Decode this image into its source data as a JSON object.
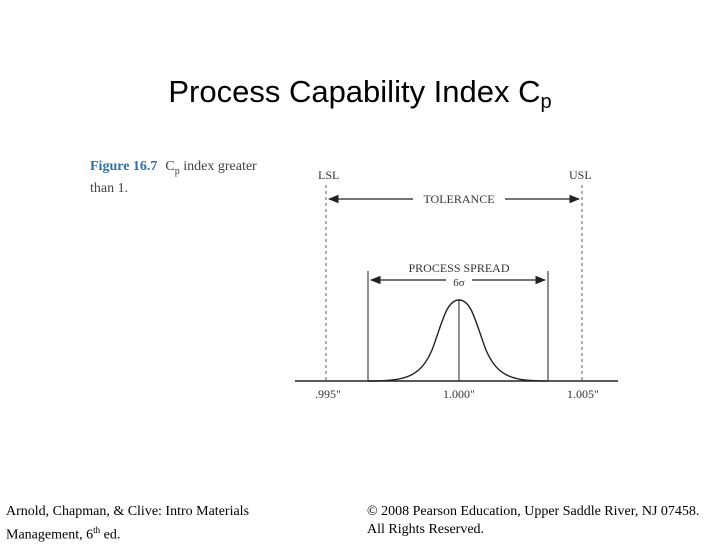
{
  "slide": {
    "title": "Process Capability Index C",
    "title_subscript": "p"
  },
  "caption": {
    "figure_label": "Figure 16.7",
    "text_a": "C",
    "text_sub": "p",
    "text_b": " index greater than 1."
  },
  "diagram": {
    "lsl_label": "LSL",
    "usl_label": "USL",
    "tolerance_label": "TOLERANCE",
    "process_spread_label": "PROCESS SPREAD",
    "sigma_label": "6σ",
    "tick_left": ".995\"",
    "tick_center": "1.000\"",
    "tick_right": "1.005\""
  },
  "footer": {
    "left_line1": "Arnold, Chapman, & Clive: Intro Materials",
    "left_line2_a": "Management, 6",
    "left_line2_sup": "th",
    "left_line2_b": " ed.",
    "right_line1": "© 2008 Pearson Education, Upper Saddle River, NJ 07458.",
    "right_line2": "All Rights Reserved."
  }
}
